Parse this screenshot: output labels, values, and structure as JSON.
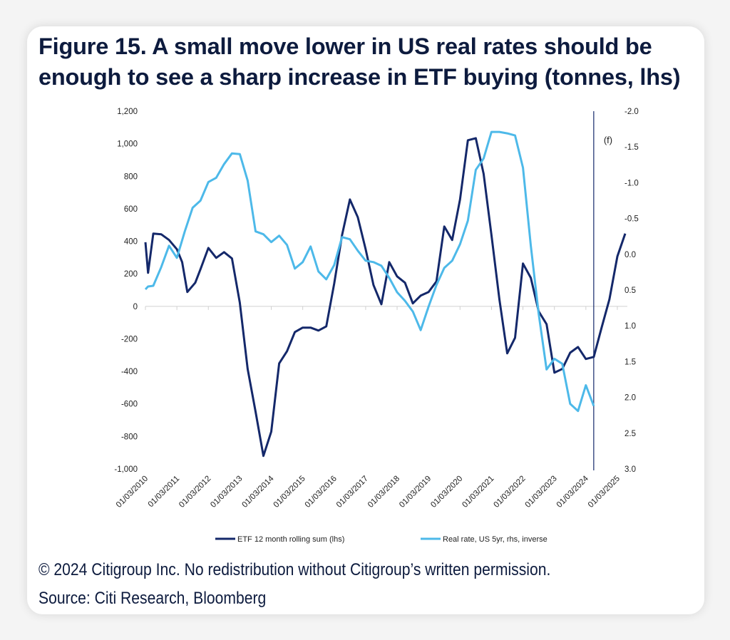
{
  "title": "Figure 15. A small move lower in US real rates should be enough to see a sharp increase in ETF buying (tonnes, lhs)",
  "footnote_copyright": "© 2024 Citigroup Inc. No redistribution without Citigroup’s written permission.",
  "footnote_source": "Source: Citi Research, Bloomberg",
  "chart_data": {
    "type": "line",
    "title": "",
    "forecast_marker": {
      "date": "2024-06",
      "label": "(f)"
    },
    "x_tick_labels": [
      "01/03/2010",
      "01/03/2011",
      "01/03/2012",
      "01/03/2013",
      "01/03/2014",
      "01/03/2015",
      "01/03/2016",
      "01/03/2017",
      "01/03/2018",
      "01/03/2019",
      "01/03/2020",
      "01/03/2021",
      "01/03/2022",
      "01/03/2023",
      "01/03/2024",
      "01/03/2025"
    ],
    "y_left": {
      "ylim": [
        -1000,
        1200
      ],
      "tick_labels": [
        "1,200",
        "1,000",
        "800",
        "600",
        "400",
        "200",
        "0",
        "-200",
        "-400",
        "-600",
        "-800",
        "-1,000"
      ]
    },
    "y_right": {
      "ylim": [
        -2.0,
        3.0
      ],
      "inverted": true,
      "tick_labels": [
        "-2.0",
        "-1.5",
        "-1.0",
        "-0.5",
        "0.0",
        "0.5",
        "1.0",
        "1.5",
        "2.0",
        "2.5",
        "3.0"
      ]
    },
    "grid": false,
    "legend_placement": "bottom",
    "series": [
      {
        "name": "ETF 12 month rolling sum (lhs)",
        "axis": "left",
        "color": "#14286a",
        "points": [
          [
            "2010-03",
            394
          ],
          [
            "2010-04",
            206
          ],
          [
            "2010-06",
            447
          ],
          [
            "2010-09",
            443
          ],
          [
            "2010-12",
            408
          ],
          [
            "2011-03",
            351
          ],
          [
            "2011-05",
            272
          ],
          [
            "2011-07",
            88
          ],
          [
            "2011-10",
            145
          ],
          [
            "2011-12",
            228
          ],
          [
            "2012-03",
            359
          ],
          [
            "2012-06",
            298
          ],
          [
            "2012-09",
            333
          ],
          [
            "2012-12",
            294
          ],
          [
            "2013-03",
            22
          ],
          [
            "2013-06",
            -385
          ],
          [
            "2013-09",
            -648
          ],
          [
            "2013-12",
            -920
          ],
          [
            "2014-03",
            -771
          ],
          [
            "2014-06",
            -351
          ],
          [
            "2014-09",
            -276
          ],
          [
            "2014-12",
            -158
          ],
          [
            "2015-03",
            -131
          ],
          [
            "2015-06",
            -131
          ],
          [
            "2015-09",
            -149
          ],
          [
            "2015-12",
            -123
          ],
          [
            "2016-03",
            140
          ],
          [
            "2016-06",
            438
          ],
          [
            "2016-09",
            657
          ],
          [
            "2016-12",
            548
          ],
          [
            "2017-03",
            351
          ],
          [
            "2017-06",
            131
          ],
          [
            "2017-09",
            13
          ],
          [
            "2017-12",
            272
          ],
          [
            "2018-03",
            184
          ],
          [
            "2018-06",
            145
          ],
          [
            "2018-09",
            18
          ],
          [
            "2018-12",
            66
          ],
          [
            "2019-03",
            88
          ],
          [
            "2019-06",
            153
          ],
          [
            "2019-09",
            491
          ],
          [
            "2019-12",
            408
          ],
          [
            "2020-03",
            657
          ],
          [
            "2020-06",
            1021
          ],
          [
            "2020-09",
            1034
          ],
          [
            "2020-12",
            815
          ],
          [
            "2021-03",
            438
          ],
          [
            "2021-06",
            44
          ],
          [
            "2021-09",
            -289
          ],
          [
            "2021-12",
            -193
          ],
          [
            "2022-03",
            263
          ],
          [
            "2022-06",
            175
          ],
          [
            "2022-09",
            -31
          ],
          [
            "2022-12",
            -110
          ],
          [
            "2023-03",
            -408
          ],
          [
            "2023-06",
            -385
          ],
          [
            "2023-09",
            -285
          ],
          [
            "2023-12",
            -250
          ],
          [
            "2024-03",
            -324
          ],
          [
            "2024-06",
            -311
          ],
          [
            "2024-09",
            -131
          ],
          [
            "2024-12",
            44
          ],
          [
            "2025-03",
            307
          ],
          [
            "2025-06",
            447
          ]
        ]
      },
      {
        "name": "Real rate, US 5yr, rhs, inverse",
        "axis": "right",
        "color": "#4db9e9",
        "points": [
          [
            "2010-03",
            0.49
          ],
          [
            "2010-04",
            0.45
          ],
          [
            "2010-06",
            0.44
          ],
          [
            "2010-09",
            0.18
          ],
          [
            "2010-12",
            -0.12
          ],
          [
            "2011-03",
            0.05
          ],
          [
            "2011-06",
            -0.32
          ],
          [
            "2011-09",
            -0.65
          ],
          [
            "2011-12",
            -0.75
          ],
          [
            "2012-03",
            -1.01
          ],
          [
            "2012-06",
            -1.07
          ],
          [
            "2012-09",
            -1.26
          ],
          [
            "2012-12",
            -1.41
          ],
          [
            "2013-03",
            -1.4
          ],
          [
            "2013-06",
            -1.03
          ],
          [
            "2013-09",
            -0.32
          ],
          [
            "2013-12",
            -0.28
          ],
          [
            "2014-03",
            -0.17
          ],
          [
            "2014-06",
            -0.26
          ],
          [
            "2014-09",
            -0.13
          ],
          [
            "2014-12",
            0.2
          ],
          [
            "2015-03",
            0.11
          ],
          [
            "2015-06",
            -0.11
          ],
          [
            "2015-09",
            0.24
          ],
          [
            "2015-12",
            0.35
          ],
          [
            "2016-03",
            0.15
          ],
          [
            "2016-06",
            -0.24
          ],
          [
            "2016-09",
            -0.21
          ],
          [
            "2016-12",
            -0.05
          ],
          [
            "2017-03",
            0.09
          ],
          [
            "2017-06",
            0.11
          ],
          [
            "2017-09",
            0.16
          ],
          [
            "2017-12",
            0.33
          ],
          [
            "2018-03",
            0.53
          ],
          [
            "2018-06",
            0.65
          ],
          [
            "2018-09",
            0.8
          ],
          [
            "2018-12",
            1.06
          ],
          [
            "2019-03",
            0.73
          ],
          [
            "2019-06",
            0.43
          ],
          [
            "2019-09",
            0.19
          ],
          [
            "2019-12",
            0.09
          ],
          [
            "2020-03",
            -0.14
          ],
          [
            "2020-06",
            -0.47
          ],
          [
            "2020-09",
            -1.18
          ],
          [
            "2020-12",
            -1.34
          ],
          [
            "2021-03",
            -1.71
          ],
          [
            "2021-06",
            -1.71
          ],
          [
            "2021-09",
            -1.69
          ],
          [
            "2021-12",
            -1.66
          ],
          [
            "2022-03",
            -1.21
          ],
          [
            "2022-06",
            -0.12
          ],
          [
            "2022-09",
            0.83
          ],
          [
            "2022-12",
            1.61
          ],
          [
            "2023-03",
            1.46
          ],
          [
            "2023-06",
            1.53
          ],
          [
            "2023-09",
            2.09
          ],
          [
            "2023-12",
            2.19
          ],
          [
            "2024-03",
            1.83
          ],
          [
            "2024-06",
            2.12
          ]
        ]
      }
    ]
  }
}
